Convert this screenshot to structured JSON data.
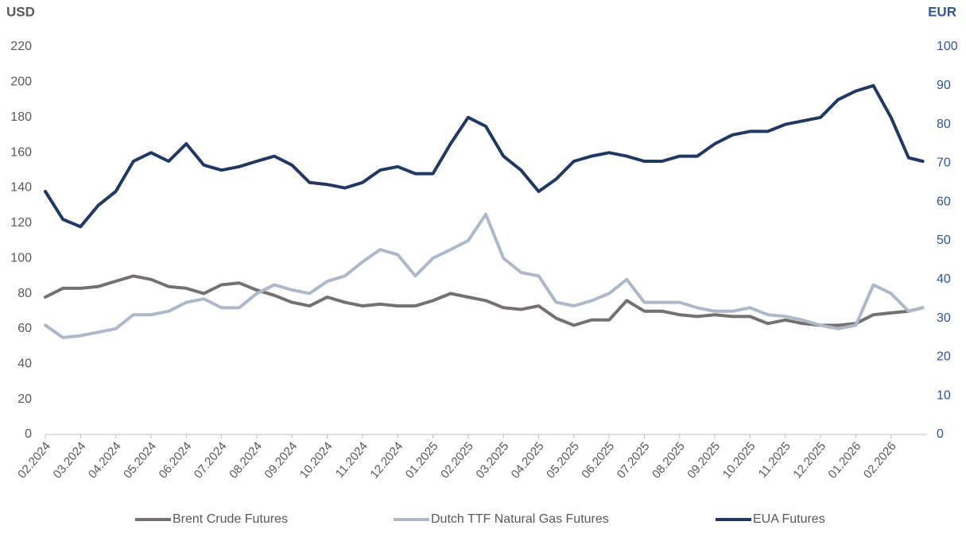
{
  "chart_data": {
    "type": "line",
    "y_label": "USD",
    "y2_label": "EUR",
    "x": [
      0,
      0.5,
      1,
      1.5,
      2,
      2.5,
      3,
      3.5,
      4,
      4.5,
      5,
      5.5,
      6,
      6.5,
      7,
      7.5,
      8,
      8.5,
      9,
      9.5,
      10,
      10.5,
      11,
      11.5,
      12,
      12.5,
      13,
      13.5,
      14,
      14.5,
      15,
      15.5,
      16,
      16.5,
      17,
      17.5,
      18,
      18.5,
      19,
      19.5,
      20,
      20.5,
      21,
      21.5,
      22,
      22.5,
      23,
      23.5,
      24,
      24.5,
      24.9
    ],
    "xlim": [
      0,
      25
    ],
    "xticks": [
      {
        "value": 0,
        "label": "02.2024"
      },
      {
        "value": 1,
        "label": "03.2024"
      },
      {
        "value": 2,
        "label": "04.2024"
      },
      {
        "value": 3,
        "label": "05.2024"
      },
      {
        "value": 4,
        "label": "06.2024"
      },
      {
        "value": 5,
        "label": "07.2024"
      },
      {
        "value": 6,
        "label": "08.2024"
      },
      {
        "value": 7,
        "label": "09.2024"
      },
      {
        "value": 8,
        "label": "10.2024"
      },
      {
        "value": 9,
        "label": "11.2024"
      },
      {
        "value": 10,
        "label": "12.2024"
      },
      {
        "value": 11,
        "label": "01.2025"
      },
      {
        "value": 12,
        "label": "02.2025"
      },
      {
        "value": 13,
        "label": "03.2025"
      },
      {
        "value": 14,
        "label": "04.2025"
      },
      {
        "value": 15,
        "label": "05.2025"
      },
      {
        "value": 16,
        "label": "06.2025"
      },
      {
        "value": 17,
        "label": "07.2025"
      },
      {
        "value": 18,
        "label": "08.2025"
      },
      {
        "value": 19,
        "label": "09.2025"
      },
      {
        "value": 20,
        "label": "10.2025"
      },
      {
        "value": 21,
        "label": "11.2025"
      },
      {
        "value": 22,
        "label": "12.2025"
      },
      {
        "value": 23,
        "label": "01.2026"
      },
      {
        "value": 24,
        "label": "02.2026"
      }
    ],
    "ylim": [
      0,
      220
    ],
    "yticks": [
      0,
      20,
      40,
      60,
      80,
      100,
      120,
      140,
      160,
      180,
      200,
      220
    ],
    "y2lim": [
      0,
      100
    ],
    "y2ticks": [
      0,
      10,
      20,
      30,
      40,
      50,
      60,
      70,
      80,
      90,
      100
    ],
    "grid": false,
    "legend": "bottom",
    "series": [
      {
        "name": "Brent Crude Futures",
        "color": "#767171",
        "axis": "y",
        "values": [
          78,
          83,
          83,
          84,
          87,
          90,
          88,
          84,
          83,
          80,
          85,
          86,
          82,
          79,
          75,
          73,
          78,
          75,
          73,
          74,
          73,
          73,
          76,
          80,
          78,
          76,
          72,
          71,
          73,
          66,
          62,
          65,
          65,
          76,
          70,
          70,
          68,
          67,
          68,
          67,
          67,
          63,
          65,
          63,
          62,
          62,
          63,
          68,
          69,
          70,
          72
        ]
      },
      {
        "name": "Dutch TTF Natural Gas Futures",
        "color": "#adb9ca",
        "axis": "y2",
        "values": [
          28.2,
          25.0,
          25.5,
          26.4,
          27.3,
          30.9,
          30.9,
          31.8,
          34.1,
          35.0,
          32.7,
          32.7,
          36.4,
          38.6,
          37.3,
          36.4,
          39.5,
          40.9,
          44.5,
          47.7,
          46.4,
          40.9,
          45.5,
          47.7,
          50.0,
          56.8,
          45.5,
          41.8,
          40.9,
          34.1,
          33.2,
          34.5,
          36.4,
          40.0,
          34.1,
          34.1,
          34.1,
          32.7,
          31.8,
          31.8,
          32.7,
          30.9,
          30.5,
          29.5,
          28.2,
          27.3,
          28.2,
          38.6,
          36.4,
          31.8,
          32.7
        ]
      },
      {
        "name": "EUA Futures",
        "color": "#1f3864",
        "axis": "y2",
        "values": [
          62.7,
          55.5,
          53.6,
          59.1,
          62.7,
          70.5,
          72.7,
          70.5,
          75.0,
          69.5,
          68.2,
          69.1,
          70.5,
          71.8,
          69.5,
          65.0,
          64.5,
          63.6,
          65.0,
          68.2,
          69.1,
          67.3,
          67.3,
          75.0,
          81.8,
          79.5,
          71.8,
          68.2,
          62.7,
          65.9,
          70.5,
          71.8,
          72.7,
          71.8,
          70.5,
          70.5,
          71.8,
          71.8,
          75.0,
          77.3,
          78.2,
          78.2,
          80.0,
          80.9,
          81.8,
          86.4,
          88.6,
          90.0,
          81.8,
          71.4,
          70.5
        ]
      }
    ]
  }
}
